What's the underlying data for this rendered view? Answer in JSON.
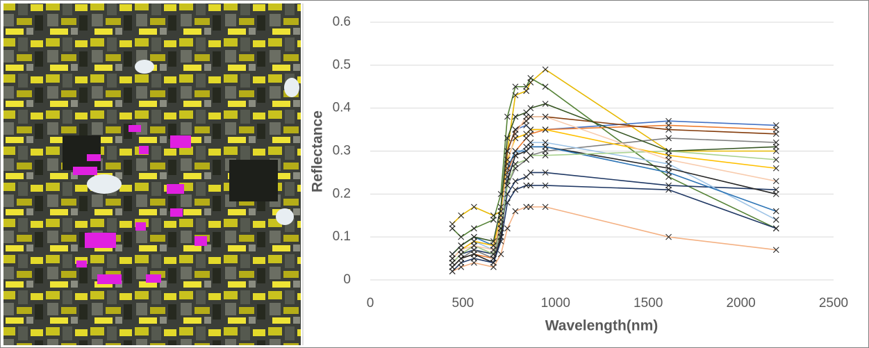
{
  "chart_data": {
    "type": "line",
    "xlabel": "Wavelength(nm)",
    "ylabel": "Reflectance",
    "x": [
      443,
      490,
      560,
      665,
      705,
      740,
      783,
      842,
      865,
      945,
      1610,
      2190
    ],
    "xlim": [
      0,
      2500
    ],
    "xticks": [
      0,
      500,
      1000,
      1500,
      2000,
      2500
    ],
    "ylim": [
      0,
      0.6
    ],
    "yticks": [
      0,
      0.1,
      0.2,
      0.3,
      0.4,
      0.5,
      0.6
    ],
    "grid": true,
    "marker_color": "#262626",
    "series": [
      {
        "color": "#e6b800",
        "values": [
          0.13,
          0.15,
          0.17,
          0.15,
          0.16,
          0.3,
          0.43,
          0.44,
          0.46,
          0.49,
          0.3,
          0.3
        ]
      },
      {
        "color": "#548235",
        "values": [
          0.12,
          0.1,
          0.12,
          0.14,
          0.2,
          0.38,
          0.45,
          0.45,
          0.47,
          0.45,
          0.24,
          0.12
        ]
      },
      {
        "color": "#4472c4",
        "values": [
          0.05,
          0.07,
          0.09,
          0.08,
          0.15,
          0.3,
          0.35,
          0.36,
          0.35,
          0.35,
          0.37,
          0.36
        ]
      },
      {
        "color": "#ed7d31",
        "values": [
          0.03,
          0.05,
          0.06,
          0.05,
          0.1,
          0.25,
          0.3,
          0.33,
          0.34,
          0.35,
          0.36,
          0.35
        ]
      },
      {
        "color": "#f4b183",
        "values": [
          0.02,
          0.03,
          0.04,
          0.03,
          0.06,
          0.12,
          0.16,
          0.17,
          0.17,
          0.17,
          0.1,
          0.07
        ]
      },
      {
        "color": "#1f3864",
        "values": [
          0.04,
          0.06,
          0.07,
          0.06,
          0.12,
          0.2,
          0.23,
          0.24,
          0.25,
          0.25,
          0.22,
          0.21
        ]
      },
      {
        "color": "#7f7f7f",
        "values": [
          0.03,
          0.05,
          0.07,
          0.05,
          0.11,
          0.22,
          0.26,
          0.28,
          0.29,
          0.3,
          0.33,
          0.32
        ]
      },
      {
        "color": "#9dc3e6",
        "values": [
          0.05,
          0.07,
          0.09,
          0.07,
          0.13,
          0.24,
          0.29,
          0.31,
          0.32,
          0.32,
          0.27,
          0.14
        ]
      },
      {
        "color": "#262626",
        "values": [
          0.03,
          0.05,
          0.06,
          0.04,
          0.1,
          0.23,
          0.29,
          0.3,
          0.31,
          0.31,
          0.26,
          0.2
        ]
      },
      {
        "color": "#843c0c",
        "values": [
          0.04,
          0.06,
          0.08,
          0.06,
          0.14,
          0.3,
          0.35,
          0.37,
          0.38,
          0.38,
          0.35,
          0.34
        ]
      },
      {
        "color": "#2e75b6",
        "values": [
          0.06,
          0.08,
          0.1,
          0.08,
          0.15,
          0.26,
          0.3,
          0.3,
          0.31,
          0.31,
          0.25,
          0.16
        ]
      },
      {
        "color": "#a9d18e",
        "values": [
          0.04,
          0.06,
          0.08,
          0.06,
          0.12,
          0.22,
          0.27,
          0.28,
          0.29,
          0.29,
          0.3,
          0.28
        ]
      },
      {
        "color": "#ffc000",
        "values": [
          0.05,
          0.07,
          0.09,
          0.08,
          0.15,
          0.28,
          0.33,
          0.34,
          0.35,
          0.35,
          0.29,
          0.26
        ]
      },
      {
        "color": "#375623",
        "values": [
          0.06,
          0.08,
          0.1,
          0.09,
          0.17,
          0.33,
          0.38,
          0.39,
          0.4,
          0.41,
          0.3,
          0.31
        ]
      },
      {
        "color": "#f8cbad",
        "values": [
          0.05,
          0.07,
          0.08,
          0.07,
          0.14,
          0.27,
          0.34,
          0.38,
          0.38,
          0.38,
          0.28,
          0.23
        ]
      },
      {
        "color": "#203864",
        "values": [
          0.02,
          0.04,
          0.05,
          0.04,
          0.09,
          0.18,
          0.21,
          0.22,
          0.22,
          0.22,
          0.21,
          0.12
        ]
      }
    ]
  }
}
